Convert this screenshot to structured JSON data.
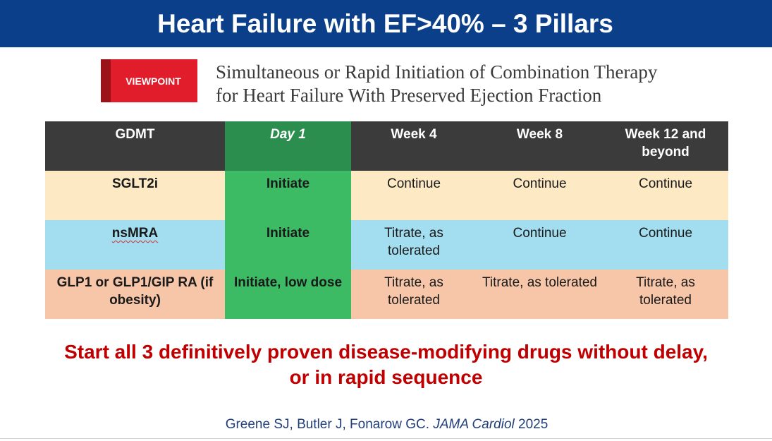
{
  "slide": {
    "title": "Heart Failure with EF>40% – 3 Pillars",
    "badge": "VIEWPOINT",
    "article_title_line1": "Simultaneous or Rapid Initiation of Combination Therapy",
    "article_title_line2": "for Heart Failure With Preserved Ejection Fraction"
  },
  "table": {
    "headers": [
      "GDMT",
      "Day 1",
      "Week 4",
      "Week 8",
      "Week 12 and beyond"
    ],
    "rows": [
      {
        "drug": "SGLT2i",
        "day1": "Initiate",
        "week4": "Continue",
        "week8": "Continue",
        "week12": "Continue"
      },
      {
        "drug": "nsMRA",
        "day1": "Initiate",
        "week4": "Titrate, as tolerated",
        "week8": "Continue",
        "week12": "Continue"
      },
      {
        "drug": "GLP1 or GLP1/GIP RA (if obesity)",
        "day1": "Initiate, low dose",
        "week4": "Titrate, as tolerated",
        "week8": "Titrate, as tolerated",
        "week12": "Titrate, as tolerated"
      }
    ]
  },
  "callout": {
    "line1": "Start all 3 definitively proven disease-modifying drugs without delay,",
    "line2": "or in rapid sequence"
  },
  "citation": {
    "authors": "Greene SJ, Butler J, Fonarow GC. ",
    "journal": "JAMA Cardiol",
    "year": " 2025"
  },
  "colors": {
    "title_bar": "#0b3f8a",
    "header_dark": "#3b3b3b",
    "day1_header": "#2c8e4e",
    "day1_column": "#3cba64",
    "row_sglt2": "#fde9c4",
    "row_nsmra": "#a2def0",
    "row_glp1": "#f7c6a8",
    "callout_red": "#c00000",
    "badge_red": "#e21d2b"
  }
}
